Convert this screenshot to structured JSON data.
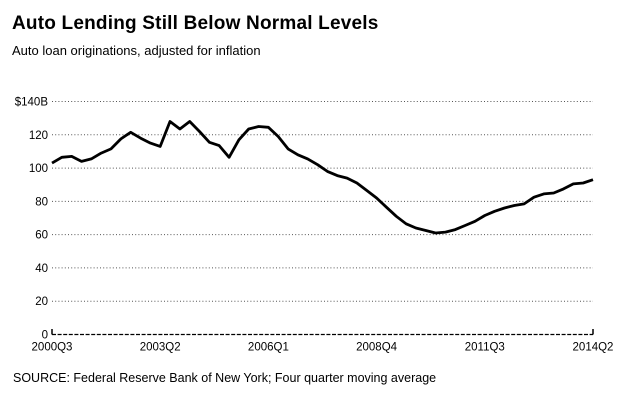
{
  "header": {
    "title": "Auto Lending Still Below Normal Levels",
    "subtitle": "Auto loan originations, adjusted for inflation"
  },
  "footer": {
    "source": "SOURCE: Federal Reserve Bank of New York; Four quarter moving average"
  },
  "colors": {
    "line": "#000000",
    "grid": "#555555",
    "background": "#ffffff",
    "text": "#000000"
  },
  "chart_data": {
    "type": "line",
    "title": "Auto Lending Still Below Normal Levels",
    "subtitle": "Auto loan originations, adjusted for inflation",
    "ylabel": "",
    "xlabel": "",
    "ylim": [
      0,
      140
    ],
    "grid": "dotted-horizontal",
    "legend": "none",
    "y_ticks": [
      0,
      20,
      40,
      60,
      80,
      100,
      120,
      140
    ],
    "y_tick_labels": [
      "0",
      "20",
      "40",
      "60",
      "80",
      "100",
      "120",
      "$140B"
    ],
    "x_tick_labels": [
      "2000Q3",
      "2003Q2",
      "2006Q1",
      "2008Q4",
      "2011Q3",
      "2014Q2"
    ],
    "x_tick_indices": [
      0,
      11,
      22,
      33,
      44,
      55
    ],
    "categories": [
      "2000Q3",
      "2000Q4",
      "2001Q1",
      "2001Q2",
      "2001Q3",
      "2001Q4",
      "2002Q1",
      "2002Q2",
      "2002Q3",
      "2002Q4",
      "2003Q1",
      "2003Q2",
      "2003Q3",
      "2003Q4",
      "2004Q1",
      "2004Q2",
      "2004Q3",
      "2004Q4",
      "2005Q1",
      "2005Q2",
      "2005Q3",
      "2005Q4",
      "2006Q1",
      "2006Q2",
      "2006Q3",
      "2006Q4",
      "2007Q1",
      "2007Q2",
      "2007Q3",
      "2007Q4",
      "2008Q1",
      "2008Q2",
      "2008Q3",
      "2008Q4",
      "2009Q1",
      "2009Q2",
      "2009Q3",
      "2009Q4",
      "2010Q1",
      "2010Q2",
      "2010Q3",
      "2010Q4",
      "2011Q1",
      "2011Q2",
      "2011Q3",
      "2011Q4",
      "2012Q1",
      "2012Q2",
      "2012Q3",
      "2012Q4",
      "2013Q1",
      "2013Q2",
      "2013Q3",
      "2013Q4",
      "2014Q1",
      "2014Q2"
    ],
    "values": [
      103,
      106.5,
      107,
      104,
      105.5,
      109,
      111.5,
      117.5,
      121.5,
      118,
      115,
      113,
      128,
      123.5,
      128,
      122,
      115.5,
      113.5,
      106.5,
      117,
      123.5,
      125,
      124.5,
      119,
      111.5,
      108,
      105.5,
      102,
      98,
      95.5,
      94,
      91,
      86.5,
      82,
      76.5,
      71,
      66.5,
      64,
      62.5,
      61,
      61.5,
      63,
      65.5,
      68,
      71.5,
      74,
      76,
      77.5,
      78.5,
      82.5,
      84.5,
      85,
      87.5,
      90.5,
      91,
      93
    ],
    "unit": "$ billions"
  }
}
